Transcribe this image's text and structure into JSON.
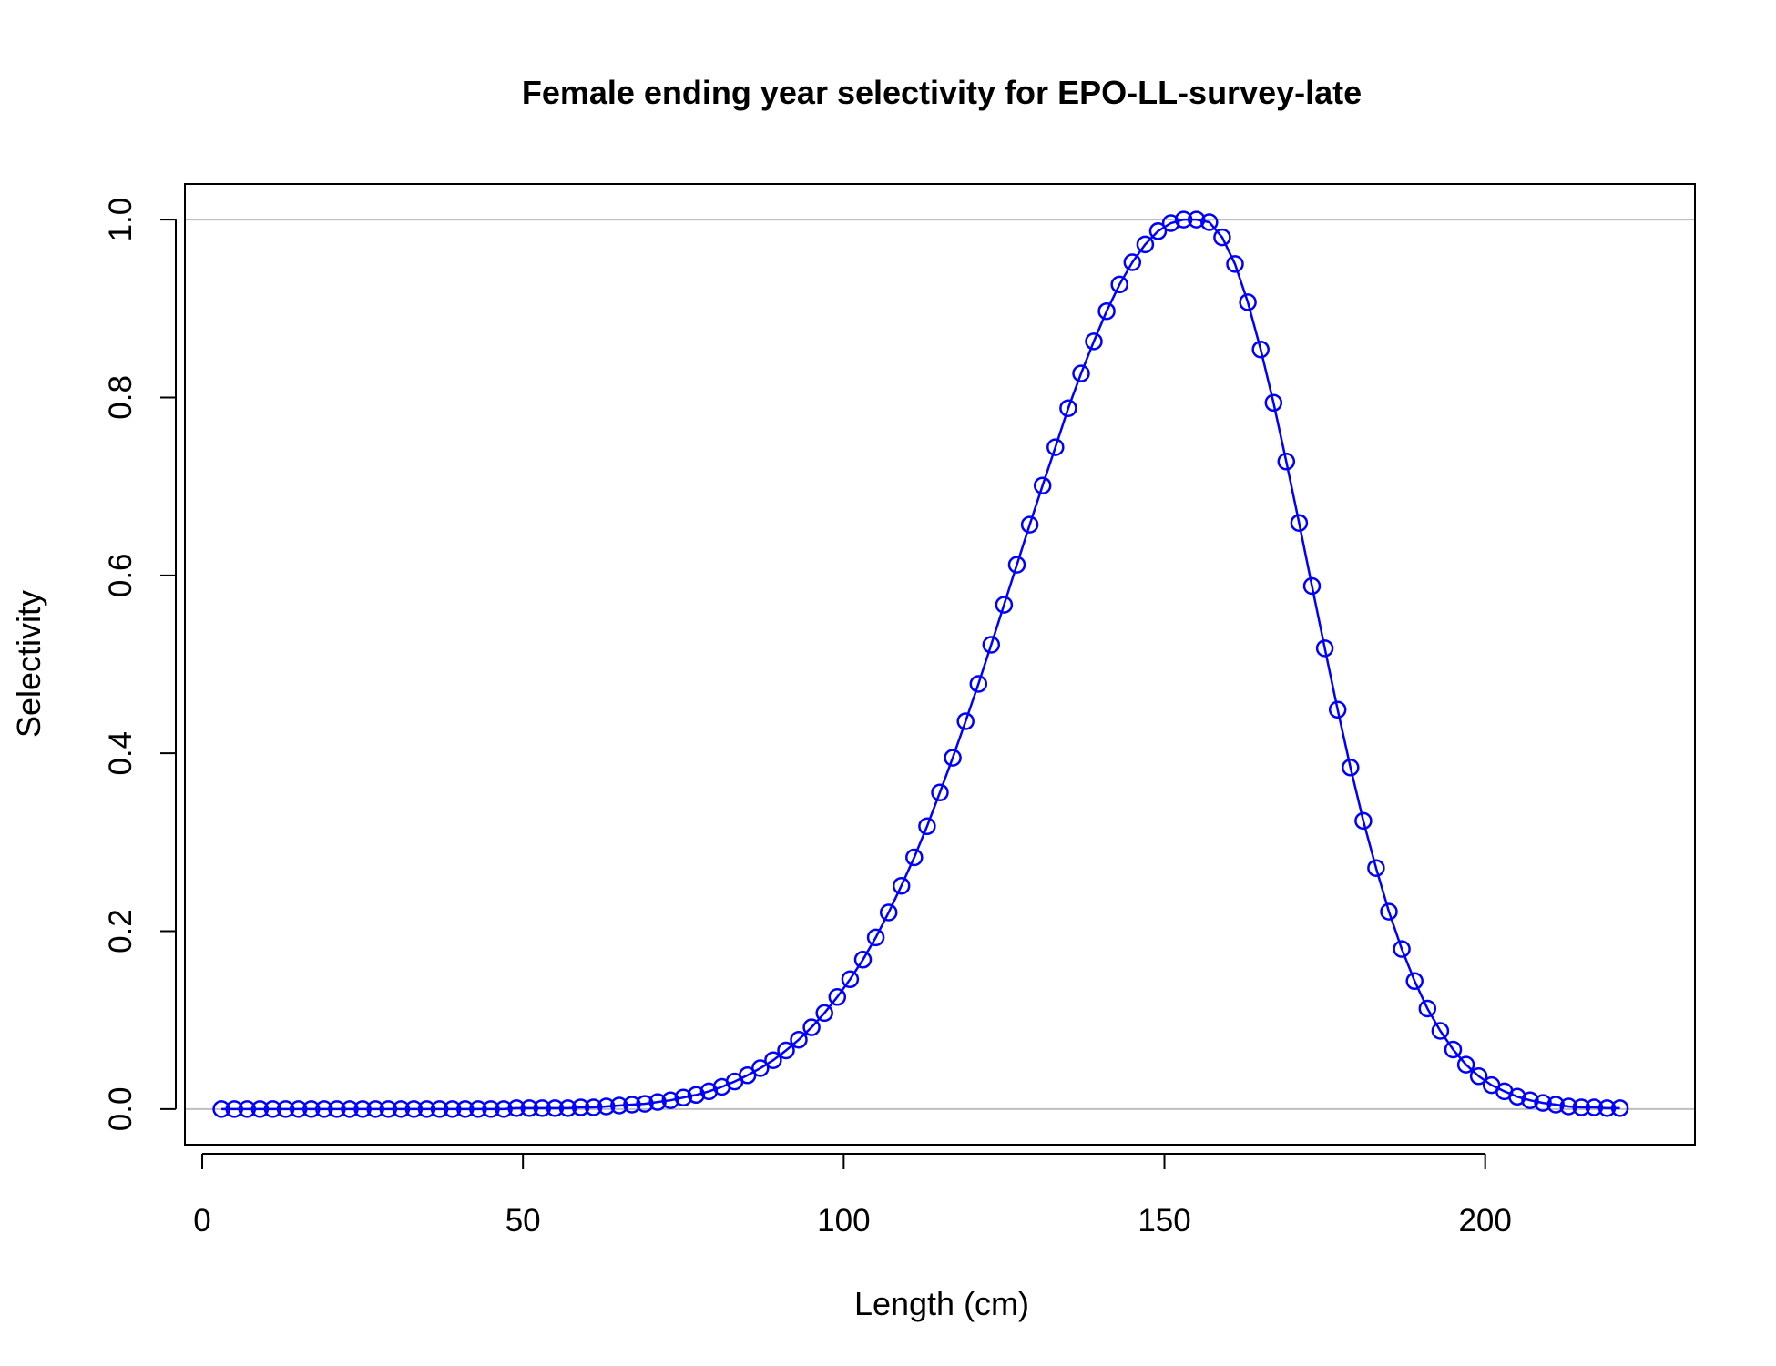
{
  "chart_data": {
    "type": "line",
    "title": "Female ending year selectivity for EPO-LL-survey-late",
    "xlabel": "Length (cm)",
    "ylabel": "Selectivity",
    "xlim": [
      -2.7,
      232.7
    ],
    "ylim": [
      -0.04,
      1.04
    ],
    "xticks": [
      0,
      50,
      100,
      150,
      200
    ],
    "yticks": [
      0.0,
      0.2,
      0.4,
      0.6,
      0.8,
      1.0
    ],
    "xtick_labels": [
      "0",
      "50",
      "100",
      "150",
      "200"
    ],
    "ytick_labels": [
      "0.0",
      "0.2",
      "0.4",
      "0.6",
      "0.8",
      "1.0"
    ],
    "reference_lines_y": [
      0,
      1
    ],
    "grid": false,
    "legend": "none",
    "colors": {
      "series": "#0000ff",
      "reference": "#bebebe",
      "frame": "#000000"
    },
    "series": [
      {
        "marker": "open-circle",
        "x": [
          3,
          5,
          7,
          9,
          11,
          13,
          15,
          17,
          19,
          21,
          23,
          25,
          27,
          29,
          31,
          33,
          35,
          37,
          39,
          41,
          43,
          45,
          47,
          49,
          51,
          53,
          55,
          57,
          59,
          61,
          63,
          65,
          67,
          69,
          71,
          73,
          75,
          77,
          79,
          81,
          83,
          85,
          87,
          89,
          91,
          93,
          95,
          97,
          99,
          101,
          103,
          105,
          107,
          109,
          111,
          113,
          115,
          117,
          119,
          121,
          123,
          125,
          127,
          129,
          131,
          133,
          135,
          137,
          139,
          141,
          143,
          145,
          147,
          149,
          151,
          153,
          155,
          157,
          159,
          161,
          163,
          165,
          167,
          169,
          171,
          173,
          175,
          177,
          179,
          181,
          183,
          185,
          187,
          189,
          191,
          193,
          195,
          197,
          199,
          201,
          203,
          205,
          207,
          209,
          211,
          213,
          215,
          217,
          219,
          221
        ],
        "y": [
          0.0,
          0.0,
          0.0,
          0.0,
          0.0,
          0.0,
          0.0,
          0.0,
          0.0,
          0.0,
          0.0,
          0.0,
          0.0,
          0.0,
          0.0,
          0.0,
          0.0,
          0.0,
          0.0,
          0.0,
          0.0,
          0.0,
          0.0,
          0.001,
          0.001,
          0.001,
          0.001,
          0.001,
          0.002,
          0.002,
          0.003,
          0.004,
          0.005,
          0.006,
          0.008,
          0.01,
          0.013,
          0.016,
          0.02,
          0.025,
          0.031,
          0.038,
          0.046,
          0.055,
          0.066,
          0.078,
          0.092,
          0.108,
          0.126,
          0.146,
          0.168,
          0.193,
          0.221,
          0.251,
          0.283,
          0.318,
          0.356,
          0.395,
          0.436,
          0.478,
          0.522,
          0.567,
          0.612,
          0.657,
          0.701,
          0.744,
          0.788,
          0.827,
          0.863,
          0.897,
          0.927,
          0.952,
          0.972,
          0.987,
          0.996,
          1.0,
          1.0,
          0.997,
          0.98,
          0.95,
          0.907,
          0.854,
          0.794,
          0.728,
          0.659,
          0.588,
          0.518,
          0.449,
          0.384,
          0.324,
          0.271,
          0.222,
          0.18,
          0.144,
          0.113,
          0.088,
          0.067,
          0.05,
          0.037,
          0.027,
          0.02,
          0.014,
          0.01,
          0.007,
          0.005,
          0.003,
          0.002,
          0.002,
          0.001,
          0.001
        ]
      }
    ]
  }
}
